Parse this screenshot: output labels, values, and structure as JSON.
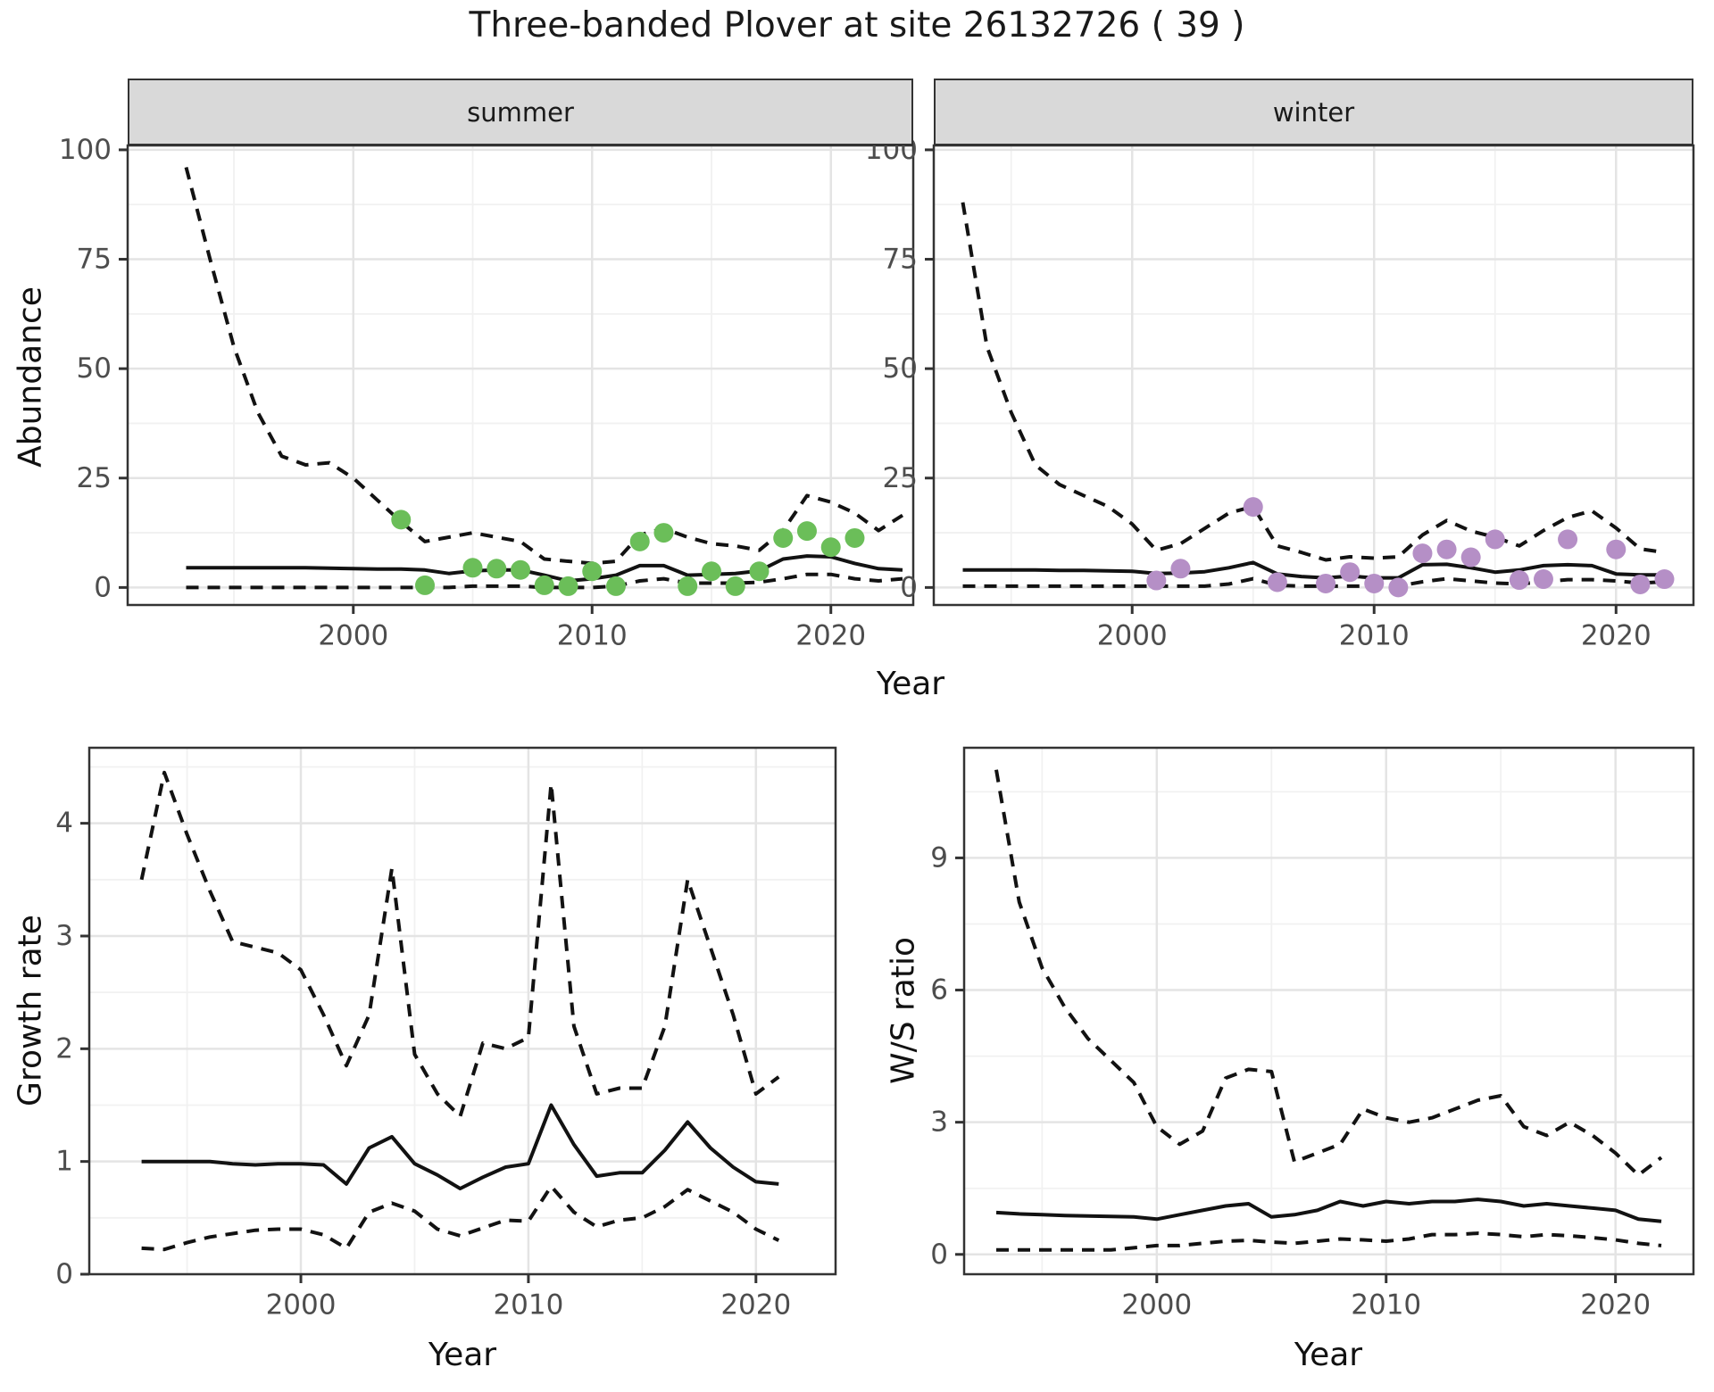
{
  "title": "Three-banded Plover at site 26132726 ( 39 )",
  "facets": {
    "summer_label": "summer",
    "winter_label": "winter"
  },
  "axis_titles": {
    "abundance": "Abundance",
    "year_top": "Year",
    "growth_rate": "Growth rate",
    "year_bottom_left": "Year",
    "ws_ratio": "W/S ratio",
    "year_bottom_right": "Year"
  },
  "colors": {
    "summer_points": "#6BBE59",
    "winter_points": "#B58FC6",
    "line": "#121212",
    "grid_major": "#E4E4E4",
    "grid_minor": "#F1F1F1",
    "panel_border": "#333333",
    "tick_text": "#4D4D4D",
    "strip_bg": "#D9D9D9"
  },
  "chart_data": [
    {
      "id": "abundance_summer",
      "type": "line",
      "facet": "summer",
      "xlabel": "Year",
      "ylabel": "Abundance",
      "xlim": [
        1990.55,
        2023.45
      ],
      "ylim": [
        -4,
        101
      ],
      "x_ticks": [
        2000,
        2010,
        2020
      ],
      "x_minor": [
        1995,
        2005,
        2015
      ],
      "y_ticks": [
        0,
        25,
        50,
        75,
        100
      ],
      "y_minor": [
        12.5,
        37.5,
        62.5,
        87.5
      ],
      "grid": true,
      "legend": "none",
      "series": [
        {
          "name": "upper_95ci",
          "style": "dashed",
          "x": [
            1993,
            1994,
            1995,
            1996,
            1997,
            1998,
            1999,
            2000,
            2001,
            2002,
            2003,
            2004,
            2005,
            2006,
            2007,
            2008,
            2009,
            2010,
            2011,
            2012,
            2013,
            2014,
            2015,
            2016,
            2017,
            2018,
            2019,
            2020,
            2021,
            2022,
            2023
          ],
          "y": [
            96,
            75,
            55,
            40,
            30,
            28,
            28.5,
            25,
            20,
            15,
            10.5,
            11.5,
            12.5,
            11.5,
            10.5,
            6.5,
            6,
            5.5,
            6,
            12,
            13.5,
            11.5,
            10,
            9.5,
            8.5,
            13,
            21,
            19.5,
            17,
            13,
            16.5
          ]
        },
        {
          "name": "median",
          "style": "solid",
          "x": [
            1993,
            1994,
            1995,
            1996,
            1997,
            1998,
            1999,
            2000,
            2001,
            2002,
            2003,
            2004,
            2005,
            2006,
            2007,
            2008,
            2009,
            2010,
            2011,
            2012,
            2013,
            2014,
            2015,
            2016,
            2017,
            2018,
            2019,
            2020,
            2021,
            2022,
            2023
          ],
          "y": [
            4.5,
            4.5,
            4.5,
            4.5,
            4.5,
            4.5,
            4.4,
            4.3,
            4.2,
            4.2,
            4,
            3.2,
            3.8,
            4,
            4,
            2.8,
            1.5,
            2,
            2.8,
            5,
            5,
            2.8,
            3,
            3.2,
            3.8,
            6.5,
            7.2,
            7,
            5.5,
            4.3,
            4
          ]
        },
        {
          "name": "lower_95ci",
          "style": "dashed",
          "x": [
            1993,
            1994,
            1995,
            1996,
            1997,
            1998,
            1999,
            2000,
            2001,
            2002,
            2003,
            2004,
            2005,
            2006,
            2007,
            2008,
            2009,
            2010,
            2011,
            2012,
            2013,
            2014,
            2015,
            2016,
            2017,
            2018,
            2019,
            2020,
            2021,
            2022,
            2023
          ],
          "y": [
            0,
            0,
            0,
            0,
            0,
            0,
            0,
            0,
            0,
            0,
            0,
            0,
            0.3,
            0.3,
            0.3,
            0,
            0,
            0,
            0.3,
            1.5,
            2,
            1,
            1,
            1,
            1.2,
            2,
            3,
            3,
            2,
            1.5,
            2
          ]
        },
        {
          "name": "observed_counts",
          "style": "points",
          "color": "#6BBE59",
          "x": [
            2002,
            2003,
            2005,
            2006,
            2007,
            2008,
            2009,
            2010,
            2011,
            2012,
            2013,
            2014,
            2015,
            2016,
            2017,
            2018,
            2019,
            2020,
            2021
          ],
          "y": [
            15.5,
            0.5,
            4.5,
            4.3,
            4,
            0.5,
            0.3,
            3.7,
            0.3,
            10.5,
            12.5,
            0.3,
            3.7,
            0.3,
            3.7,
            11.3,
            12.9,
            9.2,
            11.3
          ]
        }
      ]
    },
    {
      "id": "abundance_winter",
      "type": "line",
      "facet": "winter",
      "xlabel": "Year",
      "ylabel": "Abundance",
      "xlim": [
        1991.8,
        2023.2
      ],
      "ylim": [
        -4,
        101
      ],
      "x_ticks": [
        2000,
        2010,
        2020
      ],
      "x_minor": [
        1995,
        2005,
        2015
      ],
      "y_ticks": [
        0,
        25,
        50,
        75,
        100
      ],
      "y_minor": [
        12.5,
        37.5,
        62.5,
        87.5
      ],
      "grid": true,
      "legend": "none",
      "series": [
        {
          "name": "upper_95ci",
          "style": "dashed",
          "x": [
            1993,
            1994,
            1995,
            1996,
            1997,
            1998,
            1999,
            2000,
            2001,
            2002,
            2003,
            2004,
            2005,
            2006,
            2007,
            2008,
            2009,
            2010,
            2011,
            2012,
            2013,
            2014,
            2015,
            2016,
            2017,
            2018,
            2019,
            2020,
            2021,
            2022
          ],
          "y": [
            88,
            55,
            40,
            28,
            23.5,
            21,
            18.5,
            14.5,
            8.5,
            10,
            13.5,
            17,
            18.5,
            9.5,
            8,
            6.3,
            7,
            6.7,
            7,
            12,
            15.3,
            12.9,
            11.5,
            9.5,
            13,
            16,
            17.5,
            13.6,
            8.8,
            8
          ]
        },
        {
          "name": "median",
          "style": "solid",
          "x": [
            1993,
            1994,
            1995,
            1996,
            1997,
            1998,
            1999,
            2000,
            2001,
            2002,
            2003,
            2004,
            2005,
            2006,
            2007,
            2008,
            2009,
            2010,
            2011,
            2012,
            2013,
            2014,
            2015,
            2016,
            2017,
            2018,
            2019,
            2020,
            2021,
            2022
          ],
          "y": [
            4,
            4,
            4,
            4,
            3.9,
            3.9,
            3.8,
            3.7,
            3.2,
            3.3,
            3.6,
            4.5,
            5.7,
            3.1,
            2.5,
            2.2,
            2.6,
            2.2,
            2.2,
            5.2,
            5.3,
            4.5,
            3.5,
            4,
            5,
            5.2,
            5,
            3.1,
            2.9,
            2.9
          ]
        },
        {
          "name": "lower_95ci",
          "style": "dashed",
          "x": [
            1993,
            1994,
            1995,
            1996,
            1997,
            1998,
            1999,
            2000,
            2001,
            2002,
            2003,
            2004,
            2005,
            2006,
            2007,
            2008,
            2009,
            2010,
            2011,
            2012,
            2013,
            2014,
            2015,
            2016,
            2017,
            2018,
            2019,
            2020,
            2021,
            2022
          ],
          "y": [
            0.3,
            0.3,
            0.3,
            0.3,
            0.3,
            0.3,
            0.3,
            0.3,
            0.3,
            0.3,
            0.3,
            0.8,
            2,
            0.5,
            0.3,
            0.3,
            0.3,
            0.3,
            0.3,
            1.3,
            2,
            1.5,
            1,
            0.8,
            1.3,
            1.8,
            1.8,
            1.5,
            1,
            1.3
          ]
        },
        {
          "name": "observed_counts",
          "style": "points",
          "color": "#B58FC6",
          "x": [
            2001,
            2002,
            2005,
            2006,
            2008,
            2009,
            2010,
            2011,
            2012,
            2013,
            2014,
            2015,
            2016,
            2017,
            2018,
            2020,
            2021,
            2022
          ],
          "y": [
            1.6,
            4.3,
            18.4,
            1.2,
            0.9,
            3.5,
            0.9,
            0,
            7.8,
            8.7,
            6.9,
            11,
            1.7,
            1.9,
            11,
            8.7,
            0.7,
            1.9
          ]
        }
      ]
    },
    {
      "id": "growth_rate",
      "type": "line",
      "facet": null,
      "xlabel": "Year",
      "ylabel": "Growth rate",
      "xlim": [
        1990.7,
        2023.5
      ],
      "ylim": [
        0,
        4.67
      ],
      "x_ticks": [
        2000,
        2010,
        2020
      ],
      "x_minor": [
        1995,
        2005,
        2015
      ],
      "y_ticks": [
        0,
        1,
        2,
        3,
        4
      ],
      "y_minor": [
        0.5,
        1.5,
        2.5,
        3.5,
        4.5
      ],
      "grid": true,
      "legend": "none",
      "series": [
        {
          "name": "upper_95ci",
          "style": "dashed",
          "x": [
            1993,
            1994,
            1995,
            1996,
            1997,
            1998,
            1999,
            2000,
            2001,
            2002,
            2003,
            2004,
            2005,
            2006,
            2007,
            2008,
            2009,
            2010,
            2011,
            2012,
            2013,
            2014,
            2015,
            2016,
            2017,
            2018,
            2019,
            2020,
            2021
          ],
          "y": [
            3.5,
            4.45,
            3.9,
            3.4,
            2.95,
            2.9,
            2.85,
            2.7,
            2.3,
            1.85,
            2.3,
            3.6,
            1.95,
            1.6,
            1.4,
            2.05,
            2.0,
            2.1,
            4.35,
            2.2,
            1.6,
            1.65,
            1.65,
            2.2,
            3.5,
            2.9,
            2.3,
            1.6,
            1.75
          ]
        },
        {
          "name": "median",
          "style": "solid",
          "x": [
            1993,
            1994,
            1995,
            1996,
            1997,
            1998,
            1999,
            2000,
            2001,
            2002,
            2003,
            2004,
            2005,
            2006,
            2007,
            2008,
            2009,
            2010,
            2011,
            2012,
            2013,
            2014,
            2015,
            2016,
            2017,
            2018,
            2019,
            2020,
            2021
          ],
          "y": [
            1.0,
            1.0,
            1.0,
            1.0,
            0.98,
            0.97,
            0.98,
            0.98,
            0.97,
            0.8,
            1.12,
            1.22,
            0.98,
            0.88,
            0.76,
            0.86,
            0.95,
            0.98,
            1.5,
            1.15,
            0.87,
            0.9,
            0.9,
            1.1,
            1.35,
            1.12,
            0.95,
            0.82,
            0.8
          ]
        },
        {
          "name": "lower_95ci",
          "style": "dashed",
          "x": [
            1993,
            1994,
            1995,
            1996,
            1997,
            1998,
            1999,
            2000,
            2001,
            2002,
            2003,
            2004,
            2005,
            2006,
            2007,
            2008,
            2009,
            2010,
            2011,
            2012,
            2013,
            2014,
            2015,
            2016,
            2017,
            2018,
            2019,
            2020,
            2021
          ],
          "y": [
            0.23,
            0.22,
            0.28,
            0.33,
            0.36,
            0.39,
            0.4,
            0.4,
            0.35,
            0.23,
            0.55,
            0.63,
            0.56,
            0.4,
            0.34,
            0.41,
            0.48,
            0.47,
            0.78,
            0.55,
            0.42,
            0.48,
            0.5,
            0.6,
            0.75,
            0.65,
            0.55,
            0.4,
            0.3
          ]
        }
      ]
    },
    {
      "id": "ws_ratio",
      "type": "line",
      "facet": null,
      "xlabel": "Year",
      "ylabel": "W/S ratio",
      "xlim": [
        1991.6,
        2023.4
      ],
      "ylim": [
        -0.45,
        11.5
      ],
      "x_ticks": [
        2000,
        2010,
        2020
      ],
      "x_minor": [
        1995,
        2005,
        2015
      ],
      "y_ticks": [
        0,
        3,
        6,
        9
      ],
      "y_minor": [
        1.5,
        4.5,
        7.5,
        10.5
      ],
      "grid": true,
      "legend": "none",
      "series": [
        {
          "name": "upper_95ci",
          "style": "dashed",
          "x": [
            1993,
            1994,
            1995,
            1996,
            1997,
            1998,
            1999,
            2000,
            2001,
            2002,
            2003,
            2004,
            2005,
            2006,
            2007,
            2008,
            2009,
            2010,
            2011,
            2012,
            2013,
            2014,
            2015,
            2016,
            2017,
            2018,
            2019,
            2020,
            2021,
            2022
          ],
          "y": [
            11,
            8,
            6.5,
            5.6,
            4.9,
            4.4,
            3.9,
            2.9,
            2.5,
            2.8,
            4.0,
            4.2,
            4.15,
            2.1,
            2.3,
            2.5,
            3.3,
            3.1,
            3.0,
            3.1,
            3.3,
            3.5,
            3.6,
            2.9,
            2.7,
            3.0,
            2.7,
            2.3,
            1.8,
            2.2
          ]
        },
        {
          "name": "median",
          "style": "solid",
          "x": [
            1993,
            1994,
            1995,
            1996,
            1997,
            1998,
            1999,
            2000,
            2001,
            2002,
            2003,
            2004,
            2005,
            2006,
            2007,
            2008,
            2009,
            2010,
            2011,
            2012,
            2013,
            2014,
            2015,
            2016,
            2017,
            2018,
            2019,
            2020,
            2021,
            2022
          ],
          "y": [
            0.95,
            0.92,
            0.9,
            0.88,
            0.87,
            0.86,
            0.85,
            0.8,
            0.9,
            1.0,
            1.1,
            1.15,
            0.85,
            0.9,
            1.0,
            1.2,
            1.1,
            1.2,
            1.15,
            1.2,
            1.2,
            1.25,
            1.2,
            1.1,
            1.15,
            1.1,
            1.05,
            1.0,
            0.8,
            0.75
          ]
        },
        {
          "name": "lower_95ci",
          "style": "dashed",
          "x": [
            1993,
            1994,
            1995,
            1996,
            1997,
            1998,
            1999,
            2000,
            2001,
            2002,
            2003,
            2004,
            2005,
            2006,
            2007,
            2008,
            2009,
            2010,
            2011,
            2012,
            2013,
            2014,
            2015,
            2016,
            2017,
            2018,
            2019,
            2020,
            2021,
            2022
          ],
          "y": [
            0.1,
            0.1,
            0.1,
            0.1,
            0.1,
            0.1,
            0.15,
            0.2,
            0.2,
            0.25,
            0.3,
            0.32,
            0.28,
            0.25,
            0.3,
            0.35,
            0.33,
            0.3,
            0.35,
            0.45,
            0.45,
            0.48,
            0.45,
            0.4,
            0.45,
            0.42,
            0.38,
            0.33,
            0.25,
            0.2
          ]
        }
      ]
    }
  ]
}
